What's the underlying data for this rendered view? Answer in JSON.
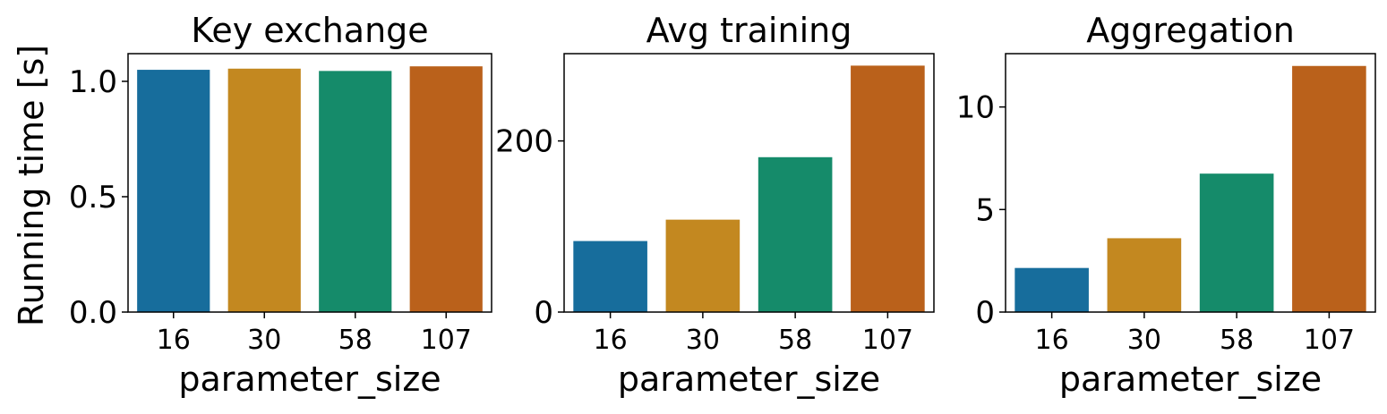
{
  "chart_data": [
    {
      "type": "bar",
      "title": "Key exchange",
      "xlabel": "parameter_size",
      "ylabel": "Running time [s]",
      "categories": [
        "16",
        "30",
        "58",
        "107"
      ],
      "values": [
        1.05,
        1.055,
        1.045,
        1.065
      ],
      "ylim": [
        0,
        1.12
      ],
      "yticks": [
        0.0,
        0.5,
        1.0
      ],
      "ytick_labels": [
        "0.0",
        "0.5",
        "1.0"
      ],
      "colors": [
        "#176d9c",
        "#c38820",
        "#158b6a",
        "#ba611b"
      ],
      "grid": false
    },
    {
      "type": "bar",
      "title": "Avg training",
      "xlabel": "parameter_size",
      "ylabel": "",
      "categories": [
        "16",
        "30",
        "58",
        "107"
      ],
      "values": [
        83,
        108,
        181,
        288
      ],
      "ylim": [
        0,
        302
      ],
      "yticks": [
        0,
        200
      ],
      "ytick_labels": [
        "0",
        "200"
      ],
      "colors": [
        "#176d9c",
        "#c38820",
        "#158b6a",
        "#ba611b"
      ],
      "grid": false
    },
    {
      "type": "bar",
      "title": "Aggregation",
      "xlabel": "parameter_size",
      "ylabel": "",
      "categories": [
        "16",
        "30",
        "58",
        "107"
      ],
      "values": [
        2.15,
        3.6,
        6.75,
        12.0
      ],
      "ylim": [
        0,
        12.6
      ],
      "yticks": [
        0,
        5,
        10
      ],
      "ytick_labels": [
        "0",
        "5",
        "10"
      ],
      "colors": [
        "#176d9c",
        "#c38820",
        "#158b6a",
        "#ba611b"
      ],
      "grid": false
    }
  ]
}
